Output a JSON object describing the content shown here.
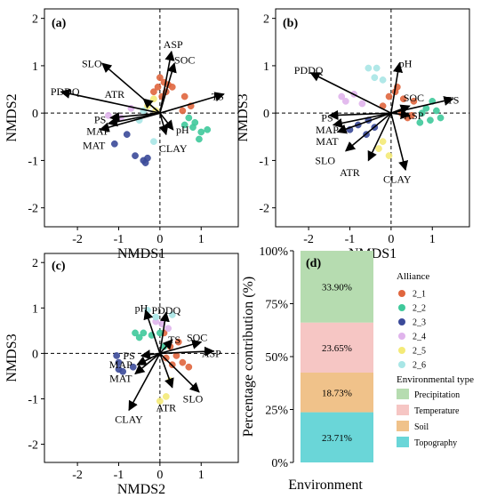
{
  "colors": {
    "2_1": "#e0663e",
    "2_2": "#3fc99b",
    "2_3": "#3b4a99",
    "2_4": "#e0b4ec",
    "2_5": "#f4ea78",
    "2_6": "#a8e6e6",
    "Precipitation": "#b6dcb0",
    "Temperature": "#f6c6c4",
    "Soil": "#f0c28a",
    "Topography": "#6ad6d8"
  },
  "chart_data": [
    {
      "id": "a",
      "type": "scatter",
      "panel_label": "(a)",
      "xlabel": "NMDS1",
      "ylabel": "NMDS2",
      "xlim": [
        -2.8,
        1.9
      ],
      "ylim": [
        -2.4,
        2.2
      ],
      "xticks": [
        -2,
        -1,
        0,
        1
      ],
      "yticks": [
        -2,
        -1,
        0,
        1,
        2
      ],
      "vectors": [
        {
          "name": "ASP",
          "x": 0.28,
          "y": 1.3,
          "lx": 0.32,
          "ly": 1.45
        },
        {
          "name": "SOC",
          "x": 0.35,
          "y": 1.05,
          "lx": 0.6,
          "ly": 1.12
        },
        {
          "name": "SLO",
          "x": -1.4,
          "y": 1.05,
          "lx": -1.65,
          "ly": 1.05
        },
        {
          "name": "PDDQ",
          "x": -2.4,
          "y": 0.45,
          "lx": -2.3,
          "ly": 0.45
        },
        {
          "name": "ATR",
          "x": -0.4,
          "y": 0.3,
          "lx": -1.1,
          "ly": 0.4
        },
        {
          "name": "TS",
          "x": 1.55,
          "y": 0.4,
          "lx": 1.4,
          "ly": 0.35
        },
        {
          "name": "PS",
          "x": -1.2,
          "y": -0.1,
          "lx": -1.45,
          "ly": -0.14
        },
        {
          "name": "MAP",
          "x": -1.25,
          "y": -0.22,
          "lx": -1.5,
          "ly": -0.38
        },
        {
          "name": "MAT",
          "x": -1.45,
          "y": -0.35,
          "lx": -1.6,
          "ly": -0.68
        },
        {
          "name": "pH",
          "x": 0.32,
          "y": -0.35,
          "lx": 0.55,
          "ly": -0.35
        },
        {
          "name": "CLAY",
          "x": 0.15,
          "y": -0.45,
          "lx": 0.32,
          "ly": -0.75
        }
      ],
      "points": [
        {
          "g": "2_1",
          "x": 0.0,
          "y": 0.75
        },
        {
          "g": "2_1",
          "x": 0.1,
          "y": 0.65
        },
        {
          "g": "2_1",
          "x": 0.2,
          "y": 0.6
        },
        {
          "g": "2_1",
          "x": -0.05,
          "y": 0.55
        },
        {
          "g": "2_1",
          "x": 0.15,
          "y": 0.45
        },
        {
          "g": "2_1",
          "x": 0.3,
          "y": 0.55
        },
        {
          "g": "2_1",
          "x": 0.6,
          "y": 0.35
        },
        {
          "g": "2_1",
          "x": 0.75,
          "y": 0.15
        },
        {
          "g": "2_1",
          "x": 0.55,
          "y": 0.05
        },
        {
          "g": "2_1",
          "x": -0.15,
          "y": 0.45
        },
        {
          "g": "2_1",
          "x": 0.05,
          "y": 0.35
        },
        {
          "g": "2_2",
          "x": 0.7,
          "y": -0.1
        },
        {
          "g": "2_2",
          "x": 0.85,
          "y": -0.2
        },
        {
          "g": "2_2",
          "x": 1.0,
          "y": -0.4
        },
        {
          "g": "2_2",
          "x": 1.15,
          "y": -0.35
        },
        {
          "g": "2_2",
          "x": 0.95,
          "y": -0.55
        },
        {
          "g": "2_2",
          "x": 0.6,
          "y": -0.25
        },
        {
          "g": "2_2",
          "x": 0.8,
          "y": -0.3
        },
        {
          "g": "2_3",
          "x": -1.1,
          "y": -0.65
        },
        {
          "g": "2_3",
          "x": -0.6,
          "y": -0.9
        },
        {
          "g": "2_3",
          "x": -0.4,
          "y": -1.0
        },
        {
          "g": "2_3",
          "x": -0.35,
          "y": -1.05
        },
        {
          "g": "2_3",
          "x": -0.3,
          "y": -0.95
        },
        {
          "g": "2_3",
          "x": -0.8,
          "y": -0.45
        },
        {
          "g": "2_4",
          "x": -1.25,
          "y": -0.05
        },
        {
          "g": "2_4",
          "x": -0.95,
          "y": -0.1
        },
        {
          "g": "2_4",
          "x": -0.7,
          "y": 0.1
        },
        {
          "g": "2_5",
          "x": -0.15,
          "y": 0.3
        },
        {
          "g": "2_5",
          "x": -0.3,
          "y": 0.15
        },
        {
          "g": "2_5",
          "x": -0.1,
          "y": 0.05
        },
        {
          "g": "2_6",
          "x": -0.4,
          "y": 0.05
        },
        {
          "g": "2_6",
          "x": -0.15,
          "y": -0.6
        },
        {
          "g": "2_6",
          "x": -0.5,
          "y": -0.15
        }
      ]
    },
    {
      "id": "b",
      "type": "scatter",
      "panel_label": "(b)",
      "xlabel": "NMDS1",
      "ylabel": "NMDS3",
      "xlim": [
        -2.8,
        1.9
      ],
      "ylim": [
        -2.4,
        2.2
      ],
      "xticks": [
        -2,
        -1,
        0,
        1
      ],
      "yticks": [
        -2,
        -1,
        0,
        1,
        2
      ],
      "vectors": [
        {
          "name": "PDDQ",
          "x": -1.95,
          "y": 0.85,
          "lx": -2.0,
          "ly": 0.9
        },
        {
          "name": "pH",
          "x": 0.2,
          "y": 1.05,
          "lx": 0.35,
          "ly": 1.05
        },
        {
          "name": "TS",
          "x": 1.5,
          "y": 0.3,
          "lx": 1.5,
          "ly": 0.28
        },
        {
          "name": "SOC",
          "x": 0.45,
          "y": 0.15,
          "lx": 0.55,
          "ly": 0.32
        },
        {
          "name": "ASP",
          "x": 0.45,
          "y": -0.05,
          "lx": 0.55,
          "ly": -0.05
        },
        {
          "name": "PS",
          "x": -1.5,
          "y": -0.05,
          "lx": -1.55,
          "ly": -0.1
        },
        {
          "name": "MAP",
          "x": -1.4,
          "y": -0.25,
          "lx": -1.55,
          "ly": -0.35
        },
        {
          "name": "MAT",
          "x": -1.3,
          "y": -0.4,
          "lx": -1.55,
          "ly": -0.6
        },
        {
          "name": "SLO",
          "x": -1.1,
          "y": -0.8,
          "lx": -1.6,
          "ly": -1.0
        },
        {
          "name": "ATR",
          "x": -0.55,
          "y": -1.0,
          "lx": -1.0,
          "ly": -1.25
        },
        {
          "name": "CLAY",
          "x": 0.35,
          "y": -1.2,
          "lx": 0.15,
          "ly": -1.4
        }
      ],
      "points": [
        {
          "g": "2_1",
          "x": 0.1,
          "y": 0.45
        },
        {
          "g": "2_1",
          "x": 0.3,
          "y": 0.3
        },
        {
          "g": "2_1",
          "x": 0.55,
          "y": 0.25
        },
        {
          "g": "2_1",
          "x": 0.25,
          "y": 0.0
        },
        {
          "g": "2_1",
          "x": 0.4,
          "y": -0.1
        },
        {
          "g": "2_1",
          "x": -0.05,
          "y": 0.35
        },
        {
          "g": "2_1",
          "x": 0.15,
          "y": 0.55
        },
        {
          "g": "2_1",
          "x": -0.2,
          "y": 0.15
        },
        {
          "g": "2_1",
          "x": 0.5,
          "y": -0.05
        },
        {
          "g": "2_2",
          "x": 0.85,
          "y": 0.1
        },
        {
          "g": "2_2",
          "x": 1.0,
          "y": 0.25
        },
        {
          "g": "2_2",
          "x": 1.1,
          "y": 0.05
        },
        {
          "g": "2_2",
          "x": 0.95,
          "y": -0.15
        },
        {
          "g": "2_2",
          "x": 0.7,
          "y": -0.2
        },
        {
          "g": "2_2",
          "x": 1.2,
          "y": -0.1
        },
        {
          "g": "2_2",
          "x": 0.75,
          "y": 0.0
        },
        {
          "g": "2_3",
          "x": -0.8,
          "y": -0.25
        },
        {
          "g": "2_3",
          "x": -0.55,
          "y": -0.15
        },
        {
          "g": "2_3",
          "x": -0.4,
          "y": -0.3
        },
        {
          "g": "2_3",
          "x": -1.0,
          "y": -0.35
        },
        {
          "g": "2_3",
          "x": -0.6,
          "y": -0.45
        },
        {
          "g": "2_4",
          "x": -1.2,
          "y": 0.35
        },
        {
          "g": "2_4",
          "x": -1.1,
          "y": 0.25
        },
        {
          "g": "2_4",
          "x": -0.9,
          "y": 0.4
        },
        {
          "g": "2_4",
          "x": -0.7,
          "y": 0.2
        },
        {
          "g": "2_5",
          "x": -0.2,
          "y": -0.6
        },
        {
          "g": "2_5",
          "x": -0.3,
          "y": -0.75
        },
        {
          "g": "2_5",
          "x": -0.05,
          "y": -0.9
        },
        {
          "g": "2_6",
          "x": -0.55,
          "y": 0.95
        },
        {
          "g": "2_6",
          "x": -0.35,
          "y": 0.95
        },
        {
          "g": "2_6",
          "x": -0.2,
          "y": 0.7
        },
        {
          "g": "2_6",
          "x": -0.4,
          "y": 0.75
        }
      ]
    },
    {
      "id": "c",
      "type": "scatter",
      "panel_label": "(c)",
      "xlabel": "NMDS2",
      "ylabel": "NMDS3",
      "xlim": [
        -2.8,
        1.9
      ],
      "ylim": [
        -2.4,
        2.2
      ],
      "xticks": [
        -2,
        -1,
        0,
        1
      ],
      "yticks": [
        -2,
        -1,
        0,
        1,
        2
      ],
      "vectors": [
        {
          "name": "pH",
          "x": -0.35,
          "y": 0.95,
          "lx": -0.45,
          "ly": 1.0
        },
        {
          "name": "PDDQ",
          "x": 0.15,
          "y": 0.9,
          "lx": 0.15,
          "ly": 0.95
        },
        {
          "name": "TS",
          "x": 0.3,
          "y": 0.3,
          "lx": 0.35,
          "ly": 0.3
        },
        {
          "name": "SOC",
          "x": 1.0,
          "y": 0.25,
          "lx": 0.9,
          "ly": 0.35
        },
        {
          "name": "ASP",
          "x": 1.3,
          "y": 0.05,
          "lx": 1.25,
          "ly": 0.0
        },
        {
          "name": "PS",
          "x": -0.45,
          "y": -0.05,
          "lx": -0.75,
          "ly": -0.05
        },
        {
          "name": "MAP",
          "x": -0.55,
          "y": -0.25,
          "lx": -0.95,
          "ly": -0.25
        },
        {
          "name": "MAT",
          "x": -0.6,
          "y": -0.45,
          "lx": -0.95,
          "ly": -0.55
        },
        {
          "name": "SLO",
          "x": 0.95,
          "y": -0.85,
          "lx": 0.8,
          "ly": -1.0
        },
        {
          "name": "ATR",
          "x": 0.3,
          "y": -0.75,
          "lx": 0.15,
          "ly": -1.2
        },
        {
          "name": "CLAY",
          "x": -0.75,
          "y": -1.25,
          "lx": -0.75,
          "ly": -1.45
        }
      ],
      "points": [
        {
          "g": "2_1",
          "x": 0.1,
          "y": 0.45
        },
        {
          "g": "2_1",
          "x": 0.25,
          "y": 0.15
        },
        {
          "g": "2_1",
          "x": 0.4,
          "y": -0.05
        },
        {
          "g": "2_1",
          "x": 0.55,
          "y": -0.2
        },
        {
          "g": "2_1",
          "x": 0.7,
          "y": -0.3
        },
        {
          "g": "2_1",
          "x": 0.3,
          "y": -0.25
        },
        {
          "g": "2_1",
          "x": 0.15,
          "y": -0.1
        },
        {
          "g": "2_1",
          "x": 0.45,
          "y": 0.25
        },
        {
          "g": "2_2",
          "x": -0.6,
          "y": 0.45
        },
        {
          "g": "2_2",
          "x": -0.4,
          "y": 0.45
        },
        {
          "g": "2_2",
          "x": -0.2,
          "y": 0.4
        },
        {
          "g": "2_2",
          "x": 0.0,
          "y": 0.45
        },
        {
          "g": "2_2",
          "x": -0.5,
          "y": 0.35
        },
        {
          "g": "2_2",
          "x": 0.1,
          "y": 0.15
        },
        {
          "g": "2_3",
          "x": -1.05,
          "y": -0.05
        },
        {
          "g": "2_3",
          "x": -1.0,
          "y": -0.35
        },
        {
          "g": "2_3",
          "x": -0.9,
          "y": -0.4
        },
        {
          "g": "2_3",
          "x": -0.65,
          "y": -0.3
        },
        {
          "g": "2_3",
          "x": -1.0,
          "y": -0.2
        },
        {
          "g": "2_4",
          "x": 0.05,
          "y": 0.65
        },
        {
          "g": "2_4",
          "x": 0.2,
          "y": 0.55
        },
        {
          "g": "2_4",
          "x": -0.1,
          "y": 0.7
        },
        {
          "g": "2_5",
          "x": 0.0,
          "y": -1.05
        },
        {
          "g": "2_5",
          "x": 0.15,
          "y": -0.95
        },
        {
          "g": "2_5",
          "x": 0.25,
          "y": -0.6
        },
        {
          "g": "2_6",
          "x": -0.3,
          "y": 0.95
        },
        {
          "g": "2_6",
          "x": 0.3,
          "y": 0.85
        },
        {
          "g": "2_6",
          "x": -0.1,
          "y": 0.8
        }
      ]
    },
    {
      "id": "d",
      "type": "bar",
      "panel_label": "(d)",
      "xlabel": "Environment",
      "ylabel": "Percentage contribution (%)",
      "ylim": [
        0,
        100
      ],
      "yticks": [
        "0%",
        "25%",
        "50%",
        "75%",
        "100%"
      ],
      "series": [
        {
          "name": "Topography",
          "value": 23.71,
          "label": "23.71%"
        },
        {
          "name": "Soil",
          "value": 18.73,
          "label": "18.73%"
        },
        {
          "name": "Temperature",
          "value": 23.65,
          "label": "23.65%"
        },
        {
          "name": "Precipitation",
          "value": 33.9,
          "label": "33.90%"
        }
      ]
    }
  ],
  "legend": {
    "alliance_title": "Alliance",
    "alliance_items": [
      "2_1",
      "2_2",
      "2_3",
      "2_4",
      "2_5",
      "2_6"
    ],
    "env_title": "Environmental type",
    "env_items": [
      "Precipitation",
      "Temperature",
      "Soil",
      "Topography"
    ]
  }
}
